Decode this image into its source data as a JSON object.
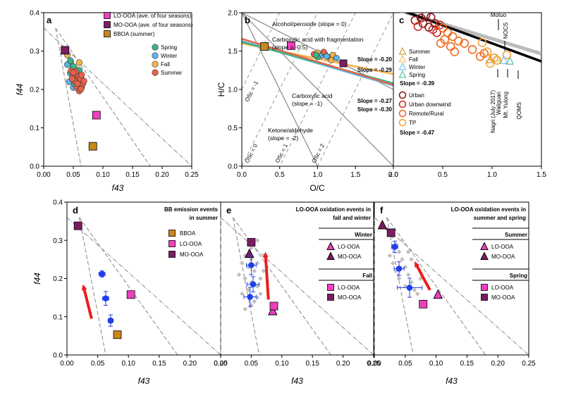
{
  "colors": {
    "lo_ooa": "#ee3fbf",
    "mo_ooa": "#7d1c63",
    "bboa": "#c8881a",
    "spring": "#3cb38a",
    "winter": "#5bb6e6",
    "fall": "#f3b34a",
    "summer": "#e8624a",
    "urban": "#8b1a1a",
    "urban_downwind": "#cc2d1e",
    "remote": "#ef6a20",
    "tp": "#f7a13a",
    "site": "#f07a2a",
    "obs_fit": "#000000",
    "gray_fit": "#bbbbbb",
    "gray_pts": "#bfbfbf",
    "mean": "#1f3ee8",
    "arrow": "#ee1c1c",
    "triangle": "#888888",
    "grid": "#999999"
  },
  "chart_data": [
    {
      "panel": "a",
      "type": "scatter",
      "xlabel": "f43",
      "ylabel": "f44",
      "xlim": [
        0,
        0.25
      ],
      "ylim": [
        0,
        0.4
      ],
      "xticks": [
        "0.00",
        "0.05",
        "0.10",
        "0.15",
        "0.20",
        "0.25"
      ],
      "yticks": [
        "0.0",
        "0.1",
        "0.2",
        "0.3",
        "0.4"
      ],
      "legend": [
        "LO-OOA (ave. of four seasons)",
        "MO-OOA (ave. of four seasons)",
        "BBOA (summer)",
        "Spring",
        "Winter",
        "Fall",
        "Summer"
      ],
      "lo_ooa": {
        "x": 0.089,
        "y": 0.133
      },
      "mo_ooa": {
        "x": 0.036,
        "y": 0.302
      },
      "bboa": {
        "x": 0.083,
        "y": 0.052
      },
      "seasons": {
        "spring": [
          [
            0.045,
            0.275
          ],
          [
            0.05,
            0.26
          ],
          [
            0.055,
            0.24
          ],
          [
            0.048,
            0.228
          ],
          [
            0.06,
            0.25
          ],
          [
            0.052,
            0.215
          ],
          [
            0.058,
            0.205
          ]
        ],
        "winter": [
          [
            0.04,
            0.265
          ],
          [
            0.047,
            0.25
          ],
          [
            0.053,
            0.235
          ],
          [
            0.043,
            0.22
          ],
          [
            0.057,
            0.218
          ],
          [
            0.05,
            0.205
          ],
          [
            0.062,
            0.232
          ],
          [
            0.045,
            0.242
          ]
        ],
        "fall": [
          [
            0.04,
            0.29
          ],
          [
            0.046,
            0.27
          ],
          [
            0.052,
            0.255
          ],
          [
            0.058,
            0.242
          ],
          [
            0.064,
            0.225
          ],
          [
            0.049,
            0.238
          ],
          [
            0.06,
            0.27
          ]
        ],
        "summer": [
          [
            0.046,
            0.248
          ],
          [
            0.05,
            0.236
          ],
          [
            0.055,
            0.226
          ],
          [
            0.06,
            0.216
          ],
          [
            0.064,
            0.206
          ],
          [
            0.058,
            0.238
          ],
          [
            0.052,
            0.222
          ],
          [
            0.062,
            0.228
          ],
          [
            0.066,
            0.215
          ],
          [
            0.056,
            0.205
          ],
          [
            0.06,
            0.196
          ],
          [
            0.048,
            0.228
          ],
          [
            0.064,
            0.238
          ],
          [
            0.054,
            0.246
          ],
          [
            0.068,
            0.222
          ],
          [
            0.057,
            0.215
          ],
          [
            0.063,
            0.201
          ],
          [
            0.05,
            0.244
          ]
        ]
      }
    },
    {
      "panel": "b",
      "type": "scatter",
      "xlabel": "O/C",
      "ylabel": "H/C",
      "xlim": [
        0,
        2.0
      ],
      "ylim": [
        0,
        2.0
      ],
      "xticks": [
        "0.0",
        "0.5",
        "1.0",
        "1.5",
        "2.0"
      ],
      "yticks": [
        "0.0",
        "0.5",
        "1.0",
        "1.5",
        "2.0"
      ],
      "annotations": [
        "Alcohol/peroxide (slope = 0)",
        "Carboxylic acid with fragmentation",
        "(slope = -0.5)",
        "Carboxylic acid",
        "(slope = -1)",
        "Ketone/aldehyde",
        "(slope = -2)"
      ],
      "os_labels": [
        "OSc = -1",
        "OSc = 0",
        "OSc = 1",
        "OSc = 2"
      ],
      "slopes": [
        {
          "label": "Slope = -0.20",
          "value": -0.2,
          "color": "fall",
          "intercept": 1.6
        },
        {
          "label": "Slope = -0.29",
          "value": -0.29,
          "color": "winter",
          "intercept": 1.63
        },
        {
          "label": "Slope = -0.27",
          "value": -0.27,
          "color": "spring",
          "intercept": 1.62
        },
        {
          "label": "Slope = -0.30",
          "value": -0.3,
          "color": "summer",
          "intercept": 1.66
        }
      ],
      "lo_ooa": {
        "x": 0.65,
        "y": 1.57
      },
      "mo_ooa": {
        "x": 1.34,
        "y": 1.34
      },
      "bboa": {
        "x": 0.3,
        "y": 1.56
      },
      "seasonal_cluster": [
        [
          0.95,
          1.46
        ],
        [
          1.0,
          1.48
        ],
        [
          1.05,
          1.44
        ],
        [
          1.1,
          1.46
        ],
        [
          1.15,
          1.42
        ],
        [
          1.2,
          1.45
        ],
        [
          1.25,
          1.41
        ],
        [
          1.0,
          1.42
        ],
        [
          1.08,
          1.49
        ],
        [
          1.18,
          1.38
        ],
        [
          1.12,
          1.43
        ],
        [
          0.98,
          1.45
        ]
      ]
    },
    {
      "panel": "c",
      "type": "scatter",
      "xlim": [
        0,
        1.5
      ],
      "ylim": [
        0,
        2.0
      ],
      "xticks": [
        "0.0",
        "0.5",
        "1.0",
        "1.5"
      ],
      "legend": [
        "Summer",
        "Fall",
        "Winter",
        "Spring",
        "Urban",
        "Urban downwind",
        "Remote/Rural",
        "TP"
      ],
      "gray_slope_label": "Slope = -0.39",
      "black_slope_label": "Slope = -0.47",
      "site_labels": [
        "Motuo",
        "NOCS",
        "Nagri",
        "(July 2017)",
        "Waliguan",
        "Mt. Yulong",
        "QOMS"
      ],
      "triangles": {
        "summer": [
          0.98,
          1.39
        ],
        "fall": [
          1.05,
          1.41
        ],
        "winter": [
          1.12,
          1.38
        ],
        "spring": [
          1.18,
          1.37
        ]
      },
      "urban": [
        [
          0.22,
          1.9
        ],
        [
          0.28,
          1.93
        ],
        [
          0.33,
          1.97
        ],
        [
          0.3,
          1.86
        ],
        [
          0.38,
          1.94
        ],
        [
          0.42,
          1.86
        ],
        [
          0.36,
          1.81
        ]
      ],
      "urban_downwind": [
        [
          0.25,
          1.82
        ],
        [
          0.4,
          1.78
        ],
        [
          0.47,
          1.84
        ],
        [
          0.44,
          1.74
        ]
      ],
      "remote": [
        [
          0.5,
          1.8
        ],
        [
          0.55,
          1.74
        ],
        [
          0.6,
          1.69
        ],
        [
          0.52,
          1.65
        ],
        [
          0.66,
          1.63
        ],
        [
          0.58,
          1.56
        ],
        [
          0.72,
          1.6
        ],
        [
          0.8,
          1.52
        ],
        [
          0.48,
          1.6
        ],
        [
          0.62,
          1.49
        ],
        [
          0.88,
          1.43
        ],
        [
          0.92,
          1.47
        ]
      ],
      "tp": [
        [
          0.95,
          1.49
        ],
        [
          1.02,
          1.41
        ],
        [
          0.9,
          1.61
        ],
        [
          1.05,
          1.38
        ],
        [
          0.98,
          1.34
        ],
        [
          1.15,
          1.45
        ]
      ]
    },
    {
      "panel": "d",
      "type": "scatter",
      "title": "BB emission events in summer",
      "xlabel": "f43",
      "ylabel": "f44",
      "xlim": [
        0,
        0.25
      ],
      "ylim": [
        0,
        0.4
      ],
      "xticks": [
        "0.00",
        "0.05",
        "0.10",
        "0.15",
        "0.20",
        "0.25"
      ],
      "yticks": [
        "0.0",
        "0.1",
        "0.2",
        "0.3",
        "0.4"
      ],
      "legend": [
        "BBOA",
        "LO-OOA",
        "MO-OOA"
      ],
      "bboa": {
        "x": 0.082,
        "y": 0.053
      },
      "lo_ooa": {
        "x": 0.104,
        "y": 0.158
      },
      "mo_ooa": {
        "x": 0.018,
        "y": 0.338
      },
      "means": [
        [
          0.057,
          0.212,
          0.005,
          0.008
        ],
        [
          0.063,
          0.148,
          0.005,
          0.018
        ],
        [
          0.071,
          0.09,
          0.004,
          0.015
        ]
      ],
      "arrow": [
        [
          0.04,
          0.095
        ],
        [
          0.026,
          0.185
        ]
      ]
    },
    {
      "panel": "e",
      "type": "scatter",
      "title": "LO-OOA oxidation events in fall and winter",
      "xlabel": "f43",
      "xlim": [
        0,
        0.25
      ],
      "ylim": [
        0,
        0.4
      ],
      "xticks": [
        "0.00",
        "0.05",
        "0.10",
        "0.15",
        "0.20",
        "0.25"
      ],
      "groups": [
        {
          "name": "Winter",
          "items": [
            "LO-OOA",
            "MO-OOA"
          ]
        },
        {
          "name": "Fall",
          "items": [
            "LO-OOA",
            "MO-OOA"
          ]
        }
      ],
      "winter_lo": {
        "x": 0.085,
        "y": 0.115
      },
      "winter_mo": {
        "x": 0.047,
        "y": 0.265
      },
      "fall_lo": {
        "x": 0.087,
        "y": 0.128
      },
      "fall_mo": {
        "x": 0.05,
        "y": 0.295
      },
      "means": [
        [
          0.05,
          0.235,
          0.008,
          0.025
        ],
        [
          0.053,
          0.185,
          0.01,
          0.02
        ],
        [
          0.048,
          0.152,
          0.01,
          0.025
        ]
      ],
      "arrow": [
        [
          0.078,
          0.145
        ],
        [
          0.073,
          0.27
        ]
      ],
      "gray": [
        [
          0.04,
          0.26
        ],
        [
          0.05,
          0.25
        ],
        [
          0.045,
          0.23
        ],
        [
          0.06,
          0.24
        ],
        [
          0.055,
          0.22
        ],
        [
          0.04,
          0.2
        ],
        [
          0.05,
          0.19
        ],
        [
          0.06,
          0.18
        ],
        [
          0.045,
          0.17
        ],
        [
          0.035,
          0.16
        ],
        [
          0.06,
          0.15
        ],
        [
          0.05,
          0.13
        ],
        [
          0.065,
          0.2
        ],
        [
          0.07,
          0.22
        ],
        [
          0.03,
          0.21
        ],
        [
          0.055,
          0.14
        ],
        [
          0.04,
          0.12
        ],
        [
          0.065,
          0.16
        ],
        [
          0.05,
          0.28
        ],
        [
          0.06,
          0.3
        ],
        [
          0.07,
          0.26
        ],
        [
          0.035,
          0.24
        ]
      ]
    },
    {
      "panel": "f",
      "type": "scatter",
      "title": "LO-OOA oxidation events in summer and spring",
      "xlabel": "f43",
      "xlim": [
        0,
        0.25
      ],
      "ylim": [
        0,
        0.4
      ],
      "xticks": [
        "0.00",
        "0.05",
        "0.10",
        "0.15",
        "0.20",
        "0.25"
      ],
      "groups": [
        {
          "name": "Summer",
          "items": [
            "LO-OOA",
            "MO-OOA"
          ]
        },
        {
          "name": "Spring",
          "items": [
            "LO-OOA",
            "MO-OOA"
          ]
        }
      ],
      "summer_lo": {
        "x": 0.103,
        "y": 0.158
      },
      "summer_mo": {
        "x": 0.013,
        "y": 0.34
      },
      "spring_lo": {
        "x": 0.079,
        "y": 0.133
      },
      "spring_mo": {
        "x": 0.027,
        "y": 0.32
      },
      "means": [
        [
          0.033,
          0.283,
          0.005,
          0.015
        ],
        [
          0.04,
          0.226,
          0.008,
          0.018
        ],
        [
          0.057,
          0.176,
          0.02,
          0.025
        ]
      ],
      "arrow": [
        [
          0.09,
          0.17
        ],
        [
          0.065,
          0.245
        ]
      ],
      "gray": [
        [
          0.02,
          0.33
        ],
        [
          0.03,
          0.31
        ],
        [
          0.035,
          0.29
        ],
        [
          0.04,
          0.27
        ],
        [
          0.045,
          0.25
        ],
        [
          0.05,
          0.23
        ],
        [
          0.055,
          0.21
        ],
        [
          0.06,
          0.19
        ],
        [
          0.065,
          0.17
        ],
        [
          0.07,
          0.16
        ],
        [
          0.025,
          0.26
        ],
        [
          0.03,
          0.24
        ],
        [
          0.04,
          0.2
        ],
        [
          0.05,
          0.18
        ],
        [
          0.075,
          0.2
        ],
        [
          0.06,
          0.25
        ],
        [
          0.045,
          0.3
        ],
        [
          0.055,
          0.27
        ],
        [
          0.08,
          0.14
        ],
        [
          0.035,
          0.22
        ]
      ]
    }
  ]
}
